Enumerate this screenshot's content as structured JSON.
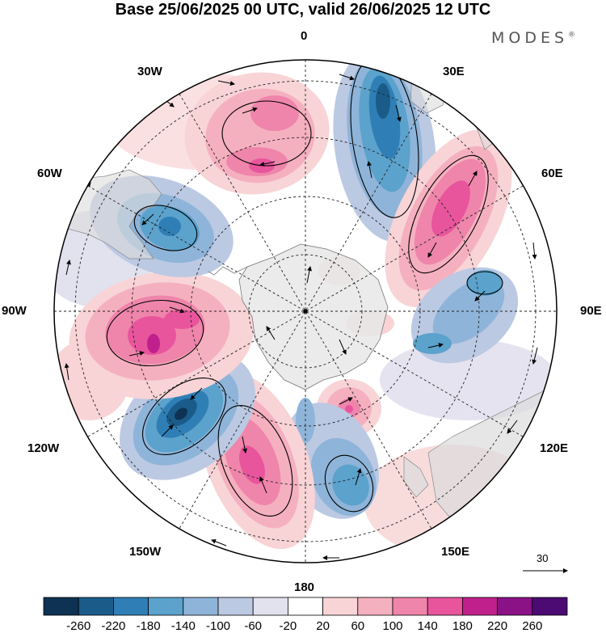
{
  "title": "Base 25/06/2025 00 UTC, valid 26/06/2025 12 UTC",
  "brand": "MODES",
  "brand_mark": "®",
  "longitude_labels": {
    "n0": "0",
    "e30": "30E",
    "e60": "60E",
    "e90": "90E",
    "e120": "120E",
    "e150": "150E",
    "s180": "180",
    "w150": "150W",
    "w120": "120W",
    "w90": "90W",
    "w60": "60W",
    "w30": "30W"
  },
  "vector_scale_label": "30",
  "colorbar": {
    "colors": [
      "#0d3253",
      "#1a5b8a",
      "#2f7fb6",
      "#5ba2cc",
      "#8fb4d9",
      "#bcc9e3",
      "#e2e1ee",
      "#ffffff",
      "#f8d4d6",
      "#f5b0bf",
      "#ef85ab",
      "#e8559c",
      "#c0208c",
      "#8a1186",
      "#4c0a73"
    ],
    "tick_labels": [
      "-260",
      "-220",
      "-180",
      "-140",
      "-100",
      "-60",
      "-20",
      "20",
      "60",
      "100",
      "140",
      "180",
      "220",
      "260"
    ]
  },
  "anomaly_centers": [
    {
      "sign": "negative",
      "level": 220,
      "lon": 20,
      "note": "blue"
    },
    {
      "sign": "positive",
      "level": 140,
      "lon": 55
    },
    {
      "sign": "negative",
      "level": 140,
      "lon": 95
    },
    {
      "sign": "positive",
      "level": 100,
      "lon": 155
    },
    {
      "sign": "negative",
      "level": 140,
      "lon": 165
    },
    {
      "sign": "positive",
      "level": 140,
      "lon": -155
    },
    {
      "sign": "negative",
      "level": 220,
      "lon": -130
    },
    {
      "sign": "positive",
      "level": 180,
      "lon": -95
    },
    {
      "sign": "negative",
      "level": 140,
      "lon": -62
    },
    {
      "sign": "positive",
      "level": 140,
      "lon": -22
    }
  ]
}
